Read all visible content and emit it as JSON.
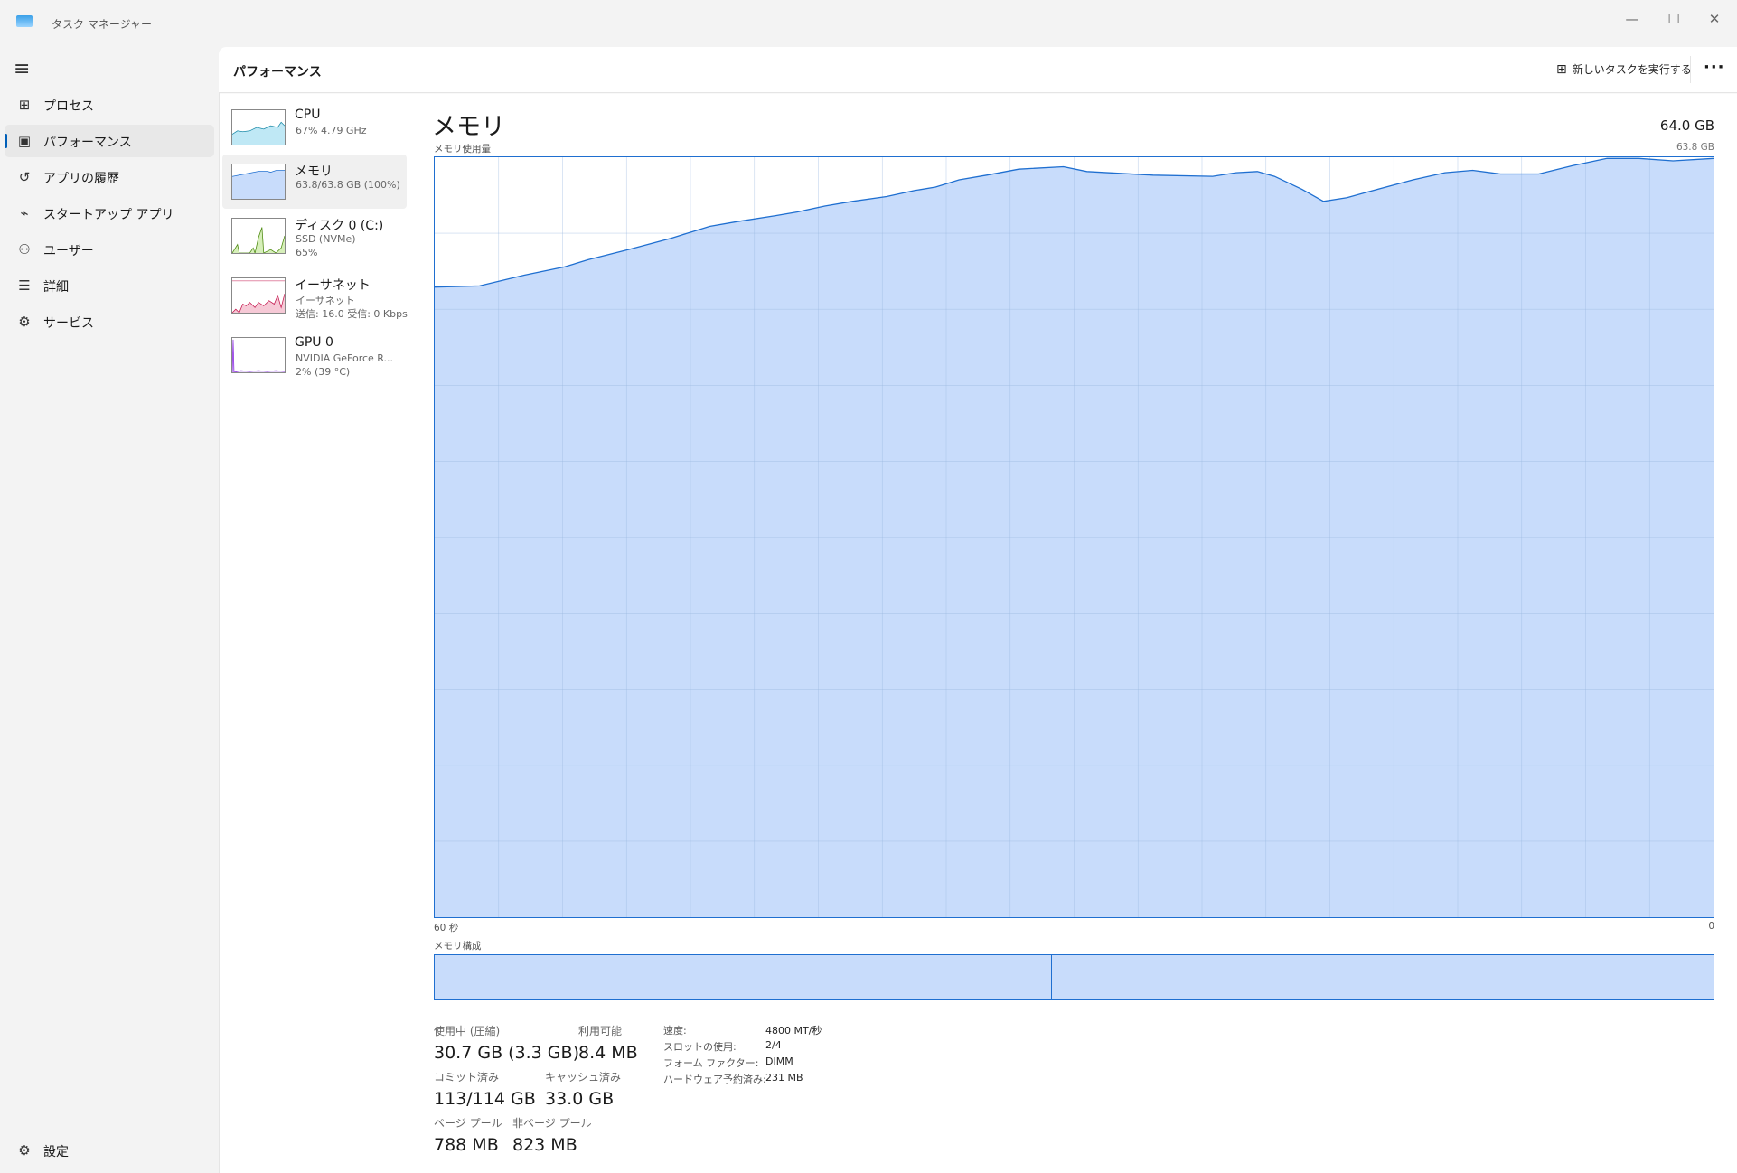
{
  "window": {
    "title": "タスク マネージャー",
    "minimize": "—",
    "maximize": "☐",
    "close": "✕"
  },
  "sidebar": {
    "items": [
      {
        "label": "プロセス",
        "icon": "processes-icon",
        "glyph": "⊞"
      },
      {
        "label": "パフォーマンス",
        "icon": "performance-icon",
        "glyph": "▣"
      },
      {
        "label": "アプリの履歴",
        "icon": "history-icon",
        "glyph": "↺"
      },
      {
        "label": "スタートアップ アプリ",
        "icon": "startup-icon",
        "glyph": "⌁"
      },
      {
        "label": "ユーザー",
        "icon": "users-icon",
        "glyph": "⚇"
      },
      {
        "label": "詳細",
        "icon": "details-icon",
        "glyph": "☰"
      },
      {
        "label": "サービス",
        "icon": "services-icon",
        "glyph": "⚙"
      }
    ],
    "settings": "設定",
    "menu_glyph": "≡"
  },
  "header": {
    "title": "パフォーマンス",
    "new_task": "新しいタスクを実行する",
    "more": "···"
  },
  "resources": [
    {
      "name": "CPU",
      "line1": "67%  4.79 GHz",
      "color": "#1a8aa8",
      "fill": "#bfe8f5"
    },
    {
      "name": "メモリ",
      "line1": "63.8/63.8 GB (100%)",
      "color": "#1f6fd0",
      "fill": "#c8dcfb"
    },
    {
      "name": "ディスク 0 (C:)",
      "line1": "SSD (NVMe)",
      "line2": "65%",
      "color": "#4d8a10",
      "fill": "#d6efb9"
    },
    {
      "name": "イーサネット",
      "line1": "イーサネット",
      "line2": "送信: 16.0 受信: 0 Kbps",
      "color": "#c4184f",
      "fill": "#f6c9d6"
    },
    {
      "name": "GPU 0",
      "line1": "NVIDIA GeForce R...",
      "line2": "2%  (39 °C)",
      "color": "#8a2be2",
      "fill": "#e6d3fa"
    }
  ],
  "detail": {
    "title": "メモリ",
    "total": "64.0 GB",
    "usage_label": "メモリ使用量",
    "max_label": "63.8 GB",
    "x_left": "60 秒",
    "x_right": "0",
    "composition_label": "メモリ構成",
    "stats": [
      {
        "label": "使用中 (圧縮)",
        "value": "30.7 GB (3.3 GB)"
      },
      {
        "label": "利用可能",
        "value": "8.4 MB"
      },
      {
        "label": "コミット済み",
        "value": "113/114 GB"
      },
      {
        "label": "キャッシュ済み",
        "value": "33.0 GB"
      },
      {
        "label": "ページ プール",
        "value": "788 MB"
      },
      {
        "label": "非ページ プール",
        "value": "823 MB"
      }
    ],
    "props": [
      {
        "label": "速度:",
        "value": "4800 MT/秒"
      },
      {
        "label": "スロットの使用:",
        "value": "2/4"
      },
      {
        "label": "フォーム ファクター:",
        "value": "DIMM"
      },
      {
        "label": "ハードウェア予約済み:",
        "value": "231 MB"
      }
    ]
  },
  "chart_data": {
    "type": "area",
    "xlabel": "",
    "ylabel": "メモリ使用量",
    "xlim": [
      60,
      0
    ],
    "ylim": [
      0,
      63.8
    ],
    "grid": true,
    "color": "#1f6fd0",
    "fill": "#c8dcfb",
    "x": [
      60,
      57.9,
      55.8,
      53.9,
      52.8,
      50.8,
      48.9,
      47.1,
      45.8,
      44.0,
      43.0,
      41.7,
      40.4,
      38.8,
      37.5,
      36.5,
      35.4,
      34.1,
      32.6,
      30.5,
      29.4,
      26.3,
      23.5,
      22.4,
      21.4,
      20.6,
      19.3,
      18.3,
      17.2,
      16.2,
      14.1,
      12.6,
      11.3,
      10.0,
      8.2,
      6.6,
      5.0,
      3.5,
      1.9,
      0
    ],
    "y": [
      52.9,
      53.0,
      53.9,
      54.6,
      55.2,
      56.1,
      57.0,
      58.0,
      58.4,
      58.9,
      59.2,
      59.7,
      60.1,
      60.5,
      61.0,
      61.3,
      61.9,
      62.3,
      62.8,
      63.0,
      62.6,
      62.3,
      62.2,
      62.5,
      62.6,
      62.2,
      61.1,
      60.1,
      60.4,
      60.9,
      61.9,
      62.5,
      62.7,
      62.4,
      62.4,
      63.1,
      63.7,
      63.7,
      63.5,
      63.7
    ]
  }
}
